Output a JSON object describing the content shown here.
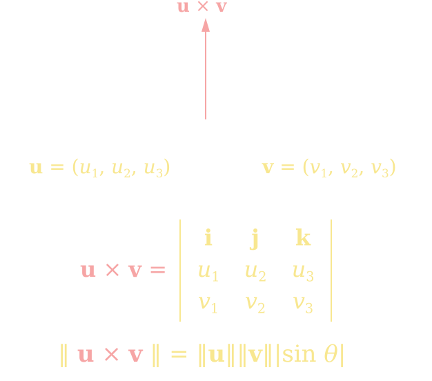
{
  "arrow_label": {
    "a": "u",
    "op": "×",
    "b": "v"
  },
  "vec_u": {
    "name": "u",
    "eq": "=",
    "open": "(",
    "c1": "u",
    "c1s": "1",
    "c2": "u",
    "c2s": "2",
    "c3": "u",
    "c3s": "3",
    "close": ")"
  },
  "vec_v": {
    "name": "v",
    "eq": "=",
    "open": "(",
    "c1": "v",
    "c1s": "1",
    "c2": "v",
    "c2s": "2",
    "c3": "v",
    "c3s": "3",
    "close": ")"
  },
  "cross_def": {
    "lhs": {
      "a": "u",
      "op": "×",
      "b": "v",
      "eq": "="
    },
    "matrix": {
      "row1": [
        "i",
        "j",
        "k"
      ],
      "row2": {
        "a": "u",
        "as": "1",
        "b": "u",
        "bs": "2",
        "c": "u",
        "cs": "3"
      },
      "row3": {
        "a": "v",
        "as": "1",
        "b": "v",
        "bs": "2",
        "c": "v",
        "cs": "3"
      }
    }
  },
  "magnitude": {
    "bar1": "‖",
    "a": "u",
    "op": "×",
    "b": "v",
    "bar2": "‖",
    "eq": "=",
    "n1": "‖",
    "u": "u",
    "n2": "‖‖",
    "v": "v",
    "n3": "‖",
    "abs1": "|",
    "sin": "sin",
    "theta": "θ",
    "abs2": "|"
  },
  "colors": {
    "pink": "#f6a5a5",
    "yellow": "#f8e790"
  }
}
